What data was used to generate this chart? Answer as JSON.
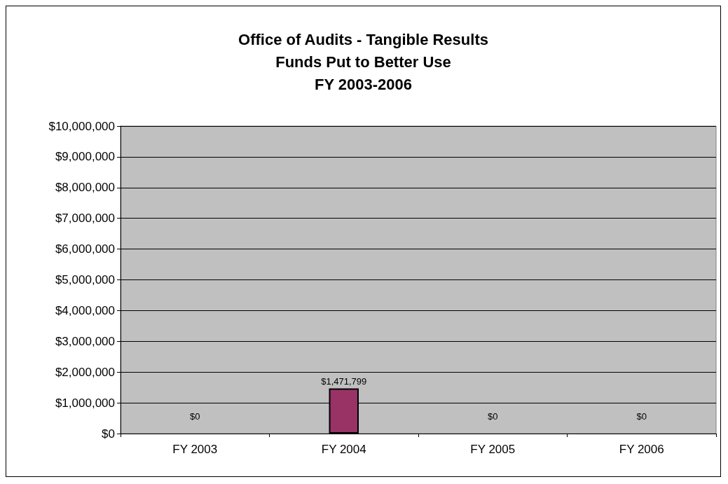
{
  "chart_data": {
    "type": "bar",
    "title": "Office of Audits - Tangible Results\nFunds Put to Better Use\nFY 2003-2006",
    "categories": [
      "FY 2003",
      "FY 2004",
      "FY 2005",
      "FY 2006"
    ],
    "values": [
      0,
      1471799,
      0,
      0
    ],
    "value_labels": [
      "$0",
      "$1,471,799",
      "$0",
      "$0"
    ],
    "color": "#993366",
    "ylim": [
      0,
      10000000
    ],
    "yticks": [
      {
        "value": 0,
        "label": "$0"
      },
      {
        "value": 1000000,
        "label": "$1,000,000"
      },
      {
        "value": 2000000,
        "label": "$2,000,000"
      },
      {
        "value": 3000000,
        "label": "$3,000,000"
      },
      {
        "value": 4000000,
        "label": "$4,000,000"
      },
      {
        "value": 5000000,
        "label": "$5,000,000"
      },
      {
        "value": 6000000,
        "label": "$6,000,000"
      },
      {
        "value": 7000000,
        "label": "$7,000,000"
      },
      {
        "value": 8000000,
        "label": "$8,000,000"
      },
      {
        "value": 9000000,
        "label": "$9,000,000"
      },
      {
        "value": 10000000,
        "label": "$10,000,000"
      }
    ],
    "grid": "y"
  }
}
